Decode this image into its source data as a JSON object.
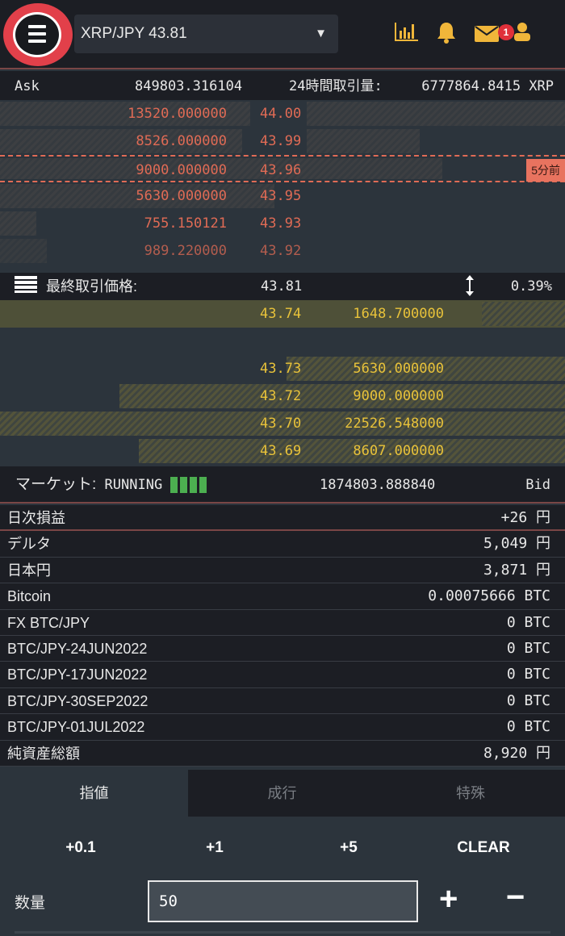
{
  "header": {
    "pair_select": "XRP/JPY 43.81",
    "dropdown_arrow": "▼",
    "icons": [
      "menu-icon",
      "chart-icon",
      "bell-icon",
      "mail-icon",
      "user-icon"
    ],
    "mail_badge": "1"
  },
  "ask_header": {
    "label": "Ask",
    "total": "849803.316104",
    "volume_label": "24時間取引量:",
    "volume": "6777864.8415 XRP"
  },
  "asks": [
    {
      "qty": "13520.000000",
      "price": "44.00"
    },
    {
      "qty": "8526.000000",
      "price": "43.99"
    },
    {
      "qty": "9000.000000",
      "price": "43.96",
      "tag": "5分前"
    },
    {
      "qty": "5630.000000",
      "price": "43.95"
    },
    {
      "qty": "755.150121",
      "price": "43.93"
    },
    {
      "qty": "989.220000",
      "price": "43.92"
    }
  ],
  "last_trade": {
    "label": "最終取引価格:",
    "price": "43.81",
    "change": "0.39%"
  },
  "bids": [
    {
      "price": "43.74",
      "qty": "1648.700000"
    },
    {
      "price": "43.73",
      "qty": "5630.000000"
    },
    {
      "price": "43.72",
      "qty": "9000.000000"
    },
    {
      "price": "43.70",
      "qty": "22526.548000"
    },
    {
      "price": "43.69",
      "qty": "8607.000000"
    }
  ],
  "market": {
    "label": "マーケット:",
    "status": "RUNNING",
    "bid_total": "1874803.888840",
    "bid_label": "Bid"
  },
  "balances": [
    {
      "label": "日次損益",
      "value": "+26 円"
    },
    {
      "label": "デルタ",
      "value": "5,049 円"
    },
    {
      "label": "日本円",
      "value": "3,871 円"
    },
    {
      "label": "Bitcoin",
      "value": "0.00075666 BTC"
    },
    {
      "label": "FX BTC/JPY",
      "value": "0 BTC"
    },
    {
      "label": "BTC/JPY-24JUN2022",
      "value": "0 BTC"
    },
    {
      "label": "BTC/JPY-17JUN2022",
      "value": "0 BTC"
    },
    {
      "label": "BTC/JPY-30SEP2022",
      "value": "0 BTC"
    },
    {
      "label": "BTC/JPY-01JUL2022",
      "value": "0 BTC"
    },
    {
      "label": "純資産総額",
      "value": "8,920 円"
    }
  ],
  "order_tabs": [
    {
      "label": "指値",
      "active": true
    },
    {
      "label": "成行"
    },
    {
      "label": "特殊"
    }
  ],
  "quick": [
    "+0.1",
    "+1",
    "+5",
    "CLEAR"
  ],
  "quantity": {
    "label": "数量",
    "value": "50",
    "plus": "+",
    "minus": "−"
  },
  "colors": {
    "ask": "#e06b55",
    "bid": "#e8c23a",
    "accent": "#f0b63a",
    "menu_ring": "#e2404a",
    "running": "#4caf50"
  }
}
